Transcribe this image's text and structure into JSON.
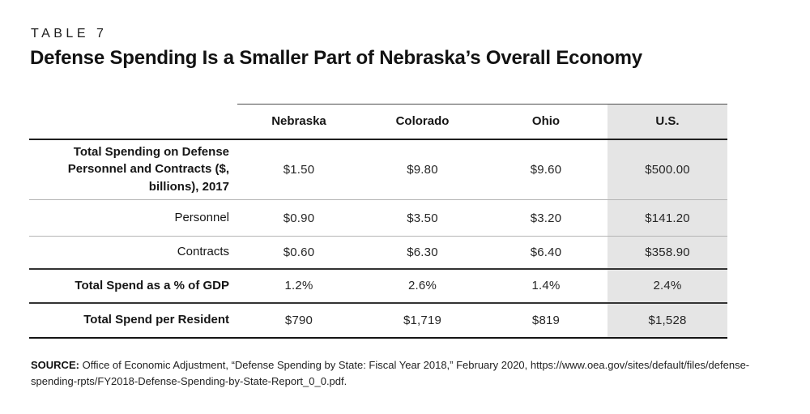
{
  "page": {
    "eyebrow": "TABLE 7",
    "title": "Defense Spending Is a Smaller Part of Nebraska’s Overall Economy"
  },
  "table": {
    "columns": [
      "Nebraska",
      "Colorado",
      "Ohio",
      "U.S."
    ],
    "highlight_column": "U.S.",
    "highlight_color": "#e5e5e5",
    "rows": [
      {
        "label": "Total Spending on Defense Personnel and Contracts ($, billions), 2017",
        "values": [
          "$1.50",
          "$9.80",
          "$9.60",
          "$500.00"
        ]
      },
      {
        "label": "Personnel",
        "values": [
          "$0.90",
          "$3.50",
          "$3.20",
          "$141.20"
        ]
      },
      {
        "label": "Contracts",
        "values": [
          "$0.60",
          "$6.30",
          "$6.40",
          "$358.90"
        ]
      },
      {
        "label": "Total Spend as a % of GDP",
        "values": [
          "1.2%",
          "2.6%",
          "1.4%",
          "2.4%"
        ]
      },
      {
        "label": "Total Spend per Resident",
        "values": [
          "$790",
          "$1,719",
          "$819",
          "$1,528"
        ]
      }
    ]
  },
  "source": {
    "label": "SOURCE:",
    "text": "Office of Economic Adjustment, “Defense Spending by State: Fiscal Year 2018,” February 2020, https://www.oea.gov/sites/default/files/defense-spending-rpts/FY2018-Defense-Spending-by-State-Report_0_0.pdf."
  },
  "chart_data": {
    "type": "table",
    "title": "Defense Spending Is a Smaller Part of Nebraska’s Overall Economy",
    "table_number": "TABLE 7",
    "columns": [
      "Nebraska",
      "Colorado",
      "Ohio",
      "U.S."
    ],
    "rows": [
      {
        "label": "Total Spending on Defense Personnel and Contracts ($, billions), 2017",
        "values": [
          1.5,
          9.8,
          9.6,
          500.0
        ],
        "unit": "$ billions"
      },
      {
        "label": "Personnel",
        "values": [
          0.9,
          3.5,
          3.2,
          141.2
        ],
        "unit": "$ billions"
      },
      {
        "label": "Contracts",
        "values": [
          0.6,
          6.3,
          6.4,
          358.9
        ],
        "unit": "$ billions"
      },
      {
        "label": "Total Spend as a % of GDP",
        "values": [
          1.2,
          2.6,
          1.4,
          2.4
        ],
        "unit": "%"
      },
      {
        "label": "Total Spend per Resident",
        "values": [
          790,
          1719,
          819,
          1528
        ],
        "unit": "$"
      }
    ],
    "highlighted_column": "U.S.",
    "source": "Office of Economic Adjustment, “Defense Spending by State: Fiscal Year 2018,” February 2020, https://www.oea.gov/sites/default/files/defense-spending-rpts/FY2018-Defense-Spending-by-State-Report_0_0.pdf."
  }
}
